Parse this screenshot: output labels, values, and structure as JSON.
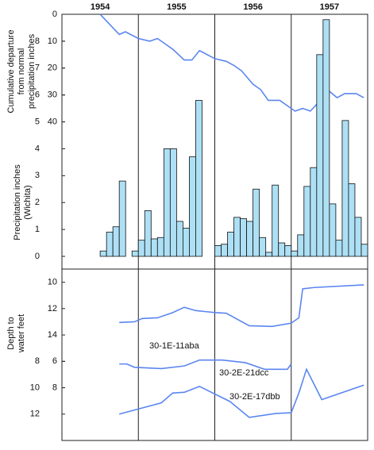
{
  "chart_data": [
    {
      "type": "line",
      "y_label": "Cumulative departure from normal precipitation inches",
      "y_inverted": true,
      "xlim": [
        1954,
        1958
      ],
      "ylim": [
        0,
        90
      ],
      "yticks": [
        0,
        10,
        20,
        30,
        40
      ],
      "xticks": [
        {
          "value": 1954.5,
          "label": "1954"
        },
        {
          "value": 1955.5,
          "label": "1955"
        },
        {
          "value": 1956.5,
          "label": "1956"
        },
        {
          "value": 1957.5,
          "label": "1957"
        }
      ],
      "color": "#5b86f0",
      "x": [
        1954.5,
        1954.75,
        1954.83,
        1955.0,
        1955.15,
        1955.25,
        1955.35,
        1955.45,
        1955.6,
        1955.7,
        1955.8,
        1956.0,
        1956.15,
        1956.25,
        1956.35,
        1956.5,
        1956.6,
        1956.7,
        1956.85,
        1957.0,
        1957.05,
        1957.15,
        1957.25,
        1957.35,
        1957.45,
        1957.6,
        1957.7,
        1957.85,
        1957.95
      ],
      "values": [
        0,
        7.5,
        6.5,
        9,
        10,
        9,
        11,
        13,
        17,
        17,
        13.5,
        16.5,
        17.5,
        19,
        21,
        26,
        28,
        32,
        32,
        35,
        36,
        35,
        36,
        33,
        27.5,
        31,
        29.5,
        29.5,
        31
      ]
    },
    {
      "type": "bar",
      "y_label": "Precipitation inches (Wichita)",
      "ylim": [
        0,
        9
      ],
      "yticks": [
        0,
        1,
        2,
        3,
        4,
        5,
        6,
        7,
        8
      ],
      "color": "#aee0f5",
      "categories": [
        null,
        null,
        null,
        null,
        null,
        null,
        null,
        null,
        null,
        null,
        null,
        null,
        null,
        null,
        null,
        null,
        null,
        null,
        null,
        null,
        null,
        null,
        null,
        null,
        null,
        null,
        null,
        null,
        null,
        null,
        null,
        null,
        null,
        null,
        null,
        null,
        null,
        null,
        null,
        null,
        null,
        null,
        null,
        null,
        null,
        null,
        null,
        null
      ],
      "values": [
        0,
        0,
        0,
        0,
        0,
        0,
        0.2,
        0.9,
        1.1,
        2.8,
        0,
        0.2,
        0.6,
        1.7,
        0.65,
        0.7,
        4.0,
        4.0,
        1.3,
        1.05,
        3.7,
        5.8,
        0,
        0,
        0.4,
        0.45,
        0.9,
        1.45,
        1.4,
        1.3,
        2.5,
        0.7,
        0.15,
        2.65,
        0.5,
        0.4,
        0.2,
        0.8,
        2.6,
        3.3,
        7.5,
        8.8,
        1.95,
        0.6,
        5.05,
        2.7,
        1.45,
        0.45
      ]
    },
    {
      "type": "line",
      "y_label": "Depth to water feet",
      "annotation": "30-1E-11aba",
      "y_inverted": true,
      "xlim": [
        1954,
        1958
      ],
      "ylim": [
        9,
        22
      ],
      "yticks": [
        10,
        12,
        14
      ],
      "color": "#5b86f0",
      "x": [
        1954.75,
        1954.95,
        1955.05,
        1955.25,
        1955.45,
        1955.6,
        1955.75,
        1956.0,
        1956.15,
        1956.45,
        1956.75,
        1957.0,
        1957.1,
        1957.15,
        1957.3,
        1957.95
      ],
      "values": [
        13.05,
        13.0,
        12.75,
        12.7,
        12.3,
        11.9,
        12.15,
        12.3,
        12.35,
        13.3,
        13.35,
        13.1,
        12.7,
        10.5,
        10.4,
        10.2
      ]
    },
    {
      "type": "line",
      "annotation": "30-2E-21dcc",
      "y_inverted": true,
      "xlim": [
        1954,
        1958
      ],
      "ylim": [
        -1,
        12
      ],
      "yticks": [
        6,
        8
      ],
      "color": "#5b86f0",
      "x": [
        1954.75,
        1954.85,
        1954.95,
        1955.3,
        1955.6,
        1955.8,
        1956.1,
        1956.4,
        1956.65,
        1956.95,
        1957.0
      ],
      "values": [
        6.2,
        6.2,
        6.45,
        6.55,
        6.35,
        5.9,
        5.9,
        6.1,
        6.6,
        6.6,
        6.2
      ]
    },
    {
      "type": "line",
      "annotation": "30-2E-17dbb",
      "y_inverted": true,
      "xlim": [
        1954,
        1958
      ],
      "ylim": [
        1,
        14
      ],
      "yticks": [
        8,
        10,
        12
      ],
      "color": "#5b86f0",
      "x": [
        1954.75,
        1955.3,
        1955.45,
        1955.6,
        1955.8,
        1956.2,
        1956.45,
        1956.8,
        1957.0,
        1957.1,
        1957.2,
        1957.4,
        1957.95
      ],
      "values": [
        12,
        11.15,
        10.4,
        10.35,
        9.9,
        11.05,
        12.25,
        11.95,
        11.9,
        10.4,
        8.6,
        10.9,
        9.8
      ]
    }
  ]
}
